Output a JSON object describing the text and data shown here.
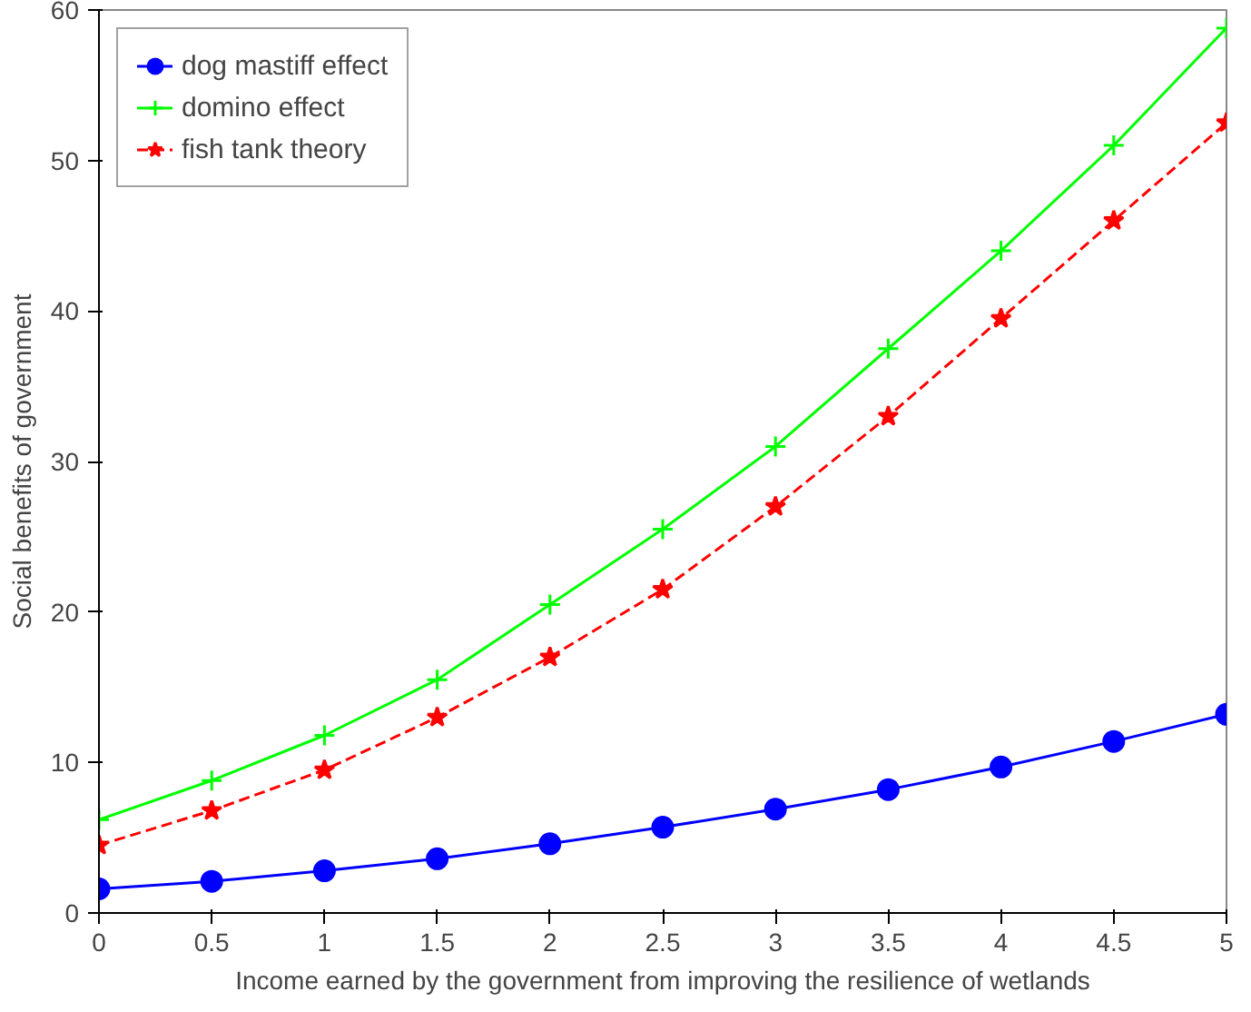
{
  "chart_data": {
    "type": "line",
    "xlabel": "Income earned by the government from improving the resilience of wetlands",
    "ylabel": "Social benefits of government",
    "x": [
      0,
      0.5,
      1,
      1.5,
      2,
      2.5,
      3,
      3.5,
      4,
      4.5,
      5
    ],
    "xlim": [
      0,
      5
    ],
    "xticks": [
      0,
      0.5,
      1,
      1.5,
      2,
      2.5,
      3,
      3.5,
      4,
      4.5,
      5
    ],
    "ylim": [
      0,
      60
    ],
    "yticks": [
      0,
      10,
      20,
      30,
      40,
      50,
      60
    ],
    "grid": false,
    "legend": "top left",
    "series": [
      {
        "name": "dog mastiff effect",
        "color": "#0000ff",
        "marker": "circle",
        "line_style": "solid",
        "values": [
          1.6,
          2.1,
          2.8,
          3.6,
          4.6,
          5.7,
          6.9,
          8.2,
          9.7,
          11.4,
          13.2
        ]
      },
      {
        "name": "domino effect",
        "color": "#00ff00",
        "marker": "cross",
        "line_style": "solid",
        "values": [
          6.2,
          8.8,
          11.8,
          15.5,
          20.5,
          25.5,
          31,
          37.5,
          44,
          51,
          58.8
        ]
      },
      {
        "name": "fish tank theory",
        "color": "#ff0000",
        "marker": "star",
        "line_style": "dashed",
        "values": [
          4.5,
          6.8,
          9.5,
          13,
          17,
          21.5,
          27,
          33,
          39.5,
          46,
          52.5
        ]
      }
    ]
  }
}
